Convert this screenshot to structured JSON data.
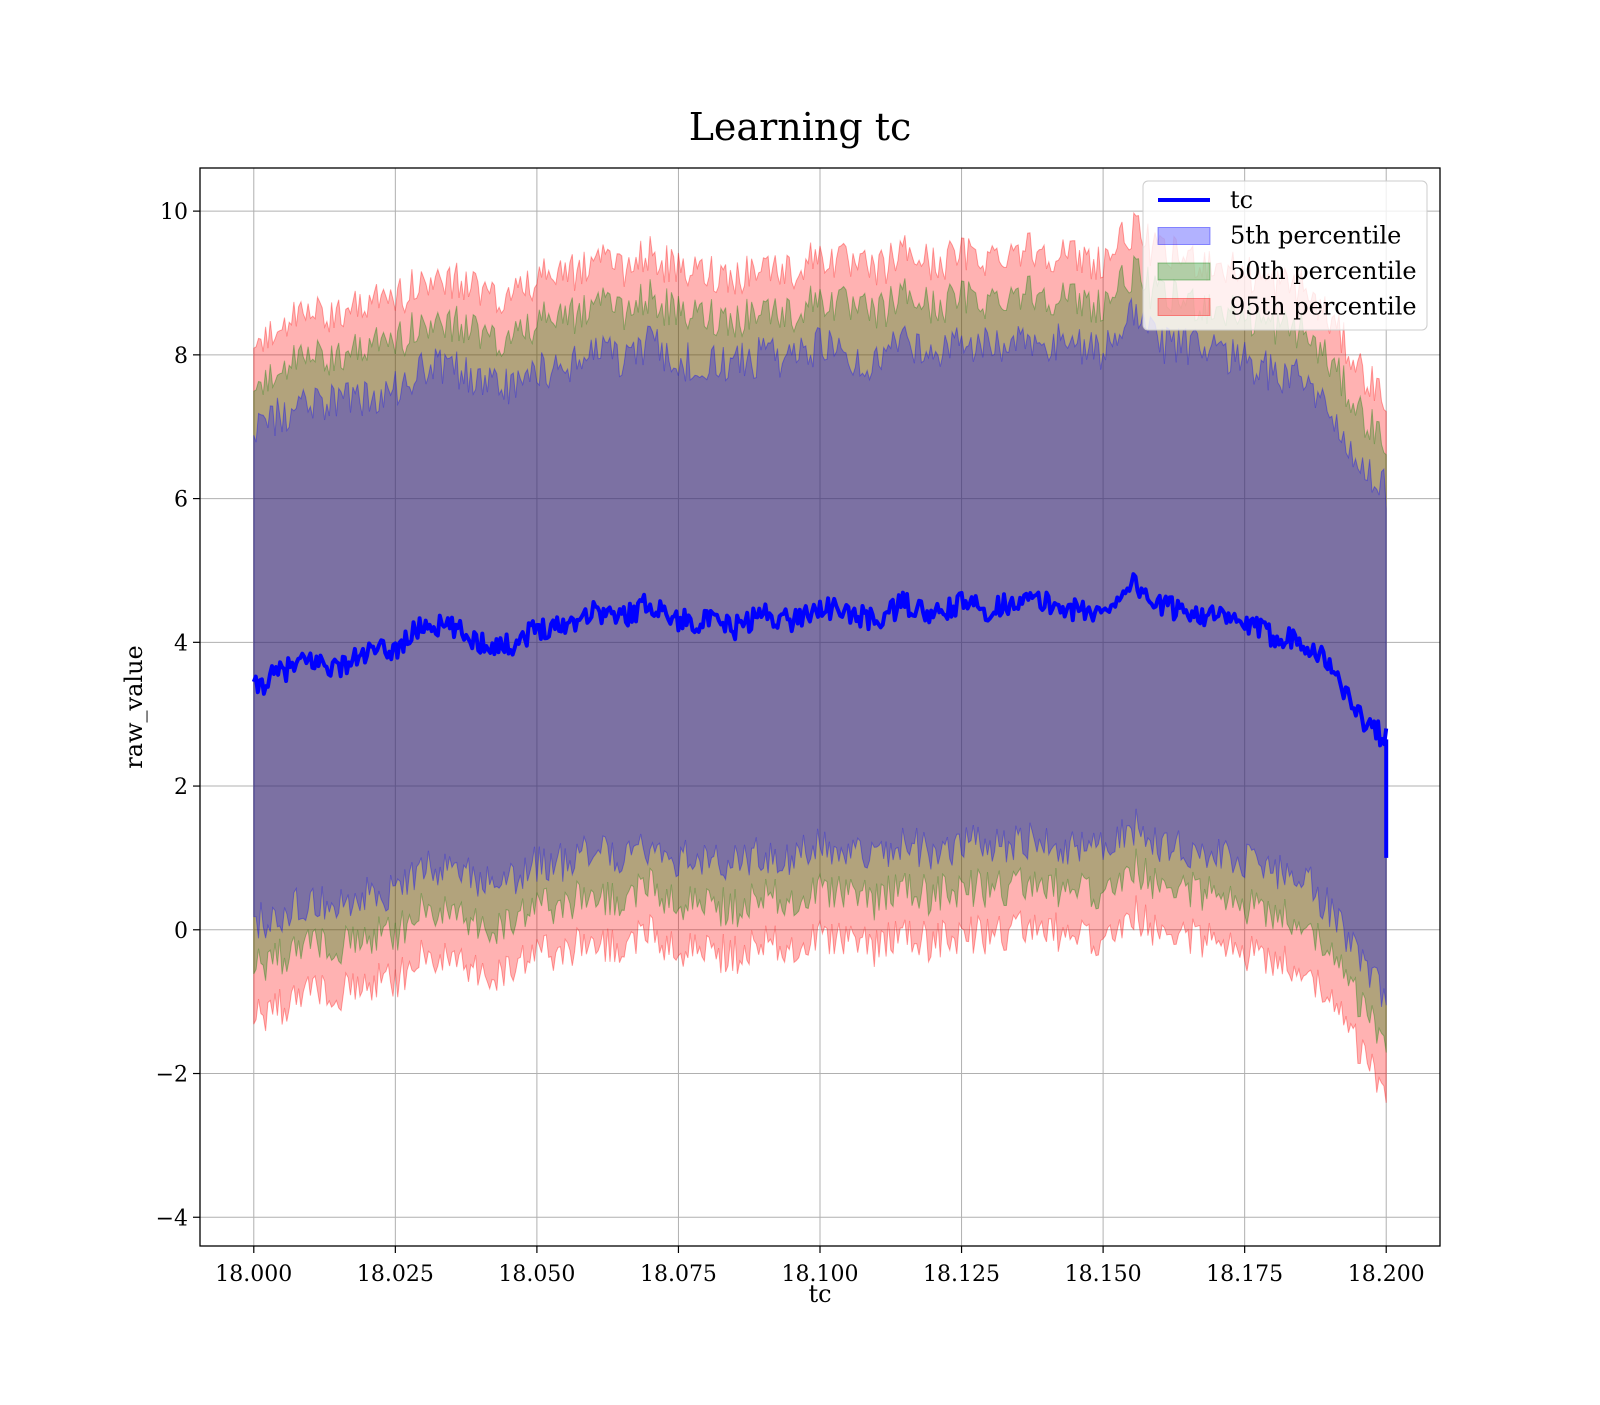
{
  "chart_data": {
    "type": "area",
    "title": "Learning tc",
    "xlabel": "tc",
    "ylabel": "raw_value",
    "xlim": [
      17.9905,
      18.2095
    ],
    "ylim": [
      -4.4,
      10.6
    ],
    "x_ticks": [
      18.0,
      18.025,
      18.05,
      18.075,
      18.1,
      18.125,
      18.15,
      18.175,
      18.2
    ],
    "x_tick_labels": [
      "18.000",
      "18.025",
      "18.050",
      "18.075",
      "18.100",
      "18.125",
      "18.150",
      "18.175",
      "18.200"
    ],
    "y_ticks": [
      -4,
      -2,
      0,
      2,
      4,
      6,
      8,
      10
    ],
    "y_tick_labels": [
      "−4",
      "−2",
      "0",
      "2",
      "4",
      "6",
      "8",
      "10"
    ],
    "grid": true,
    "legend_position": "top-right",
    "x": [
      18.0,
      18.005,
      18.01,
      18.015,
      18.02,
      18.025,
      18.03,
      18.035,
      18.04,
      18.045,
      18.05,
      18.055,
      18.06,
      18.065,
      18.07,
      18.075,
      18.08,
      18.085,
      18.09,
      18.095,
      18.1,
      18.105,
      18.11,
      18.115,
      18.12,
      18.125,
      18.13,
      18.135,
      18.14,
      18.145,
      18.15,
      18.155,
      18.16,
      18.165,
      18.17,
      18.175,
      18.18,
      18.185,
      18.19,
      18.195,
      18.2
    ],
    "series": [
      {
        "name": "tc",
        "kind": "line",
        "color": "#0000ff",
        "values": [
          3.35,
          3.6,
          3.75,
          3.65,
          3.85,
          3.9,
          4.25,
          4.2,
          4.0,
          3.95,
          4.2,
          4.25,
          4.45,
          4.35,
          4.55,
          4.3,
          4.3,
          4.2,
          4.4,
          4.3,
          4.5,
          4.4,
          4.3,
          4.55,
          4.35,
          4.55,
          4.45,
          4.6,
          4.55,
          4.45,
          4.4,
          4.85,
          4.5,
          4.45,
          4.35,
          4.25,
          4.1,
          4.05,
          3.7,
          3.0,
          2.65
        ]
      },
      {
        "name": "5th percentile",
        "kind": "band",
        "color": "#0000ff",
        "lower": [
          0.1,
          0.25,
          0.4,
          0.35,
          0.5,
          0.55,
          0.85,
          0.9,
          0.7,
          0.7,
          0.9,
          0.95,
          1.1,
          1.05,
          1.2,
          1.0,
          1.0,
          0.9,
          1.05,
          1.0,
          1.15,
          1.05,
          1.0,
          1.25,
          1.05,
          1.2,
          1.15,
          1.25,
          1.2,
          1.15,
          1.1,
          1.45,
          1.2,
          1.15,
          1.05,
          0.95,
          0.8,
          0.75,
          0.3,
          -0.4,
          -0.9
        ],
        "upper": [
          7.0,
          7.2,
          7.35,
          7.3,
          7.45,
          7.5,
          7.85,
          7.8,
          7.6,
          7.55,
          7.8,
          7.85,
          8.05,
          7.95,
          8.15,
          7.9,
          7.9,
          7.85,
          8.0,
          7.9,
          8.15,
          8.0,
          7.9,
          8.2,
          8.0,
          8.15,
          8.1,
          8.25,
          8.2,
          8.1,
          8.05,
          8.5,
          8.15,
          8.1,
          8.0,
          7.9,
          7.75,
          7.7,
          7.25,
          6.6,
          6.1
        ]
      },
      {
        "name": "50th percentile",
        "kind": "band",
        "color": "#008000",
        "lower": [
          -0.55,
          -0.35,
          -0.2,
          -0.25,
          -0.1,
          -0.05,
          0.3,
          0.3,
          0.1,
          0.05,
          0.3,
          0.35,
          0.5,
          0.45,
          0.6,
          0.35,
          0.35,
          0.3,
          0.45,
          0.4,
          0.55,
          0.45,
          0.4,
          0.65,
          0.45,
          0.6,
          0.55,
          0.65,
          0.6,
          0.55,
          0.5,
          0.9,
          0.6,
          0.55,
          0.45,
          0.35,
          0.2,
          0.15,
          -0.3,
          -1.0,
          -1.6
        ],
        "upper": [
          7.65,
          7.85,
          8.0,
          7.95,
          8.1,
          8.15,
          8.5,
          8.45,
          8.25,
          8.2,
          8.45,
          8.5,
          8.7,
          8.6,
          8.8,
          8.55,
          8.55,
          8.5,
          8.65,
          8.55,
          8.8,
          8.65,
          8.55,
          8.85,
          8.65,
          8.8,
          8.75,
          8.9,
          8.85,
          8.75,
          8.7,
          9.15,
          8.8,
          8.75,
          8.65,
          8.55,
          8.4,
          8.35,
          7.9,
          7.25,
          6.75
        ]
      },
      {
        "name": "95th percentile",
        "kind": "band",
        "color": "#ff0000",
        "lower": [
          -1.25,
          -1.05,
          -0.85,
          -0.9,
          -0.75,
          -0.7,
          -0.35,
          -0.35,
          -0.55,
          -0.6,
          -0.35,
          -0.3,
          -0.15,
          -0.2,
          -0.05,
          -0.3,
          -0.3,
          -0.35,
          -0.2,
          -0.25,
          -0.1,
          -0.2,
          -0.25,
          0.0,
          -0.2,
          -0.05,
          -0.1,
          0.05,
          0.0,
          -0.1,
          -0.15,
          0.25,
          -0.05,
          -0.1,
          -0.2,
          -0.3,
          -0.45,
          -0.5,
          -0.95,
          -1.65,
          -2.3
        ],
        "upper": [
          8.25,
          8.45,
          8.6,
          8.55,
          8.7,
          8.75,
          9.1,
          9.05,
          8.85,
          8.8,
          9.05,
          9.1,
          9.3,
          9.2,
          9.4,
          9.15,
          9.15,
          9.1,
          9.25,
          9.15,
          9.4,
          9.25,
          9.15,
          9.45,
          9.25,
          9.4,
          9.35,
          9.5,
          9.45,
          9.35,
          9.3,
          9.75,
          9.4,
          9.35,
          9.25,
          9.15,
          9.0,
          8.95,
          8.5,
          7.85,
          7.35
        ]
      }
    ],
    "legend": [
      {
        "label": "tc",
        "kind": "line",
        "color": "#0000ff"
      },
      {
        "label": "5th percentile",
        "kind": "patch",
        "color": "#0000ff"
      },
      {
        "label": "50th percentile",
        "kind": "patch",
        "color": "#008000"
      },
      {
        "label": "95th percentile",
        "kind": "patch",
        "color": "#ff0000"
      }
    ]
  }
}
